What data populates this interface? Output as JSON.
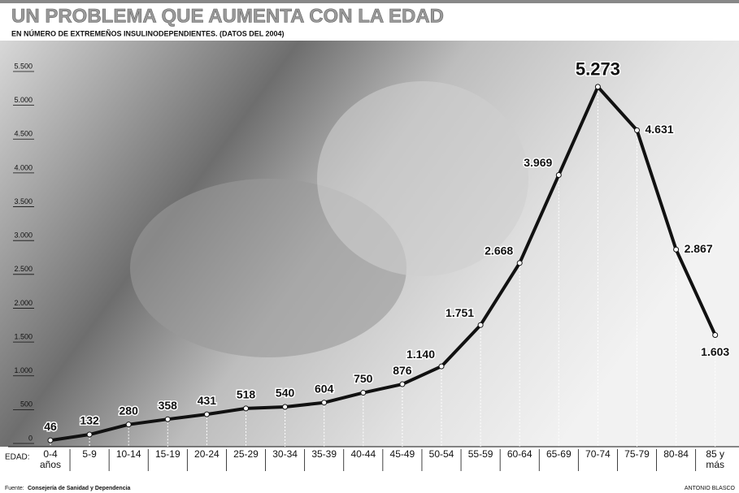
{
  "chart_data": {
    "type": "line",
    "title": "UN PROBLEMA QUE AUMENTA CON LA EDAD",
    "subtitle": "EN NÚMERO DE EXTREMEÑOS INSULINODEPENDIENTES. (DATOS DEL 2004)",
    "x_label": "EDAD:",
    "categories": [
      "0-4 años",
      "5-9",
      "10-14",
      "15-19",
      "20-24",
      "25-29",
      "30-34",
      "35-39",
      "40-44",
      "45-49",
      "50-54",
      "55-59",
      "60-64",
      "65-69",
      "70-74",
      "75-79",
      "80-84",
      "85 y más"
    ],
    "values": [
      46,
      132,
      280,
      358,
      431,
      518,
      540,
      604,
      750,
      876,
      1140,
      1751,
      2668,
      3969,
      5273,
      4631,
      2867,
      1603
    ],
    "value_labels": [
      "46",
      "132",
      "280",
      "358",
      "431",
      "518",
      "540",
      "604",
      "750",
      "876",
      "1.140",
      "1.751",
      "2.668",
      "3.969",
      "5.273",
      "4.631",
      "2.867",
      "1.603"
    ],
    "color": "#111111",
    "ylim": [
      0,
      5500
    ],
    "yticks": [
      0,
      500,
      {
        "value": 1000,
        "label": "1.000"
      },
      {
        "value": 1500,
        "label": "1.500"
      },
      {
        "value": 2000,
        "label": "2.000"
      },
      {
        "value": 2500,
        "label": "2.500"
      },
      {
        "value": 3000,
        "label": "3.000"
      },
      {
        "value": 3500,
        "label": "3.500"
      },
      {
        "value": 4000,
        "label": "4.000"
      },
      {
        "value": 4500,
        "label": "4.500"
      },
      {
        "value": 5000,
        "label": "5.000"
      },
      {
        "value": 5500,
        "label": "5.500"
      }
    ],
    "source_label": "Fuente:",
    "source": "Consejería de Sanidad y Dependencia",
    "credit": "ANTONIO BLASCO"
  }
}
